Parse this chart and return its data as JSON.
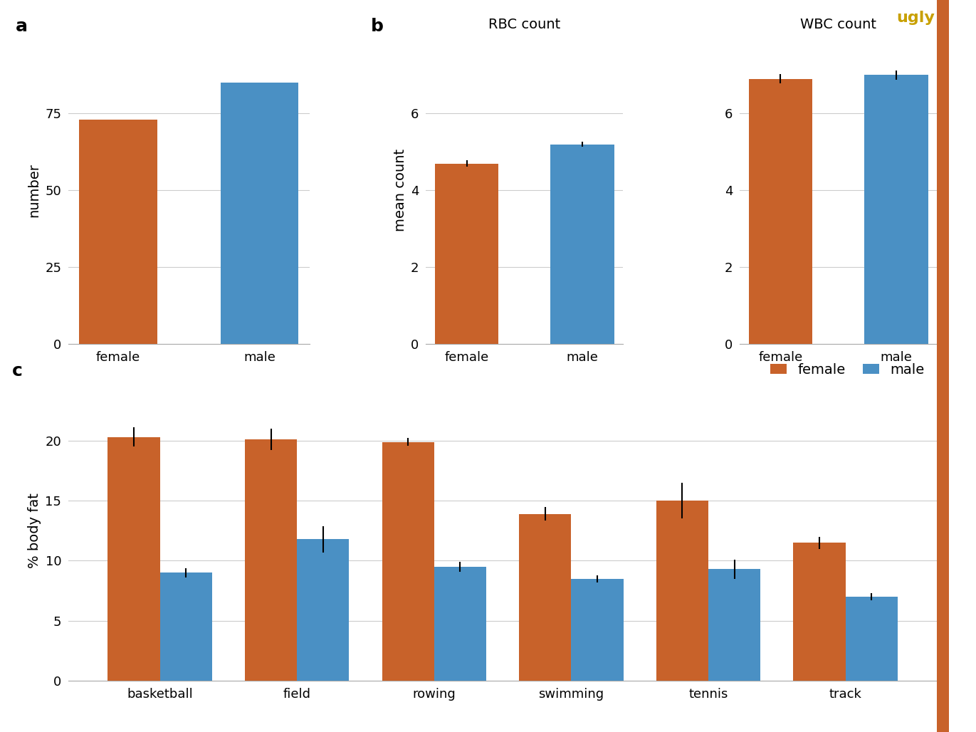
{
  "panel_a": {
    "categories": [
      "female",
      "male"
    ],
    "values": [
      73,
      85
    ],
    "colors": [
      "#C8622A",
      "#4A90C4"
    ],
    "ylabel": "number",
    "ylim": [
      0,
      100
    ],
    "yticks": [
      0,
      25,
      50,
      75
    ]
  },
  "panel_b_rbc": {
    "title": "RBC count",
    "categories": [
      "female",
      "male"
    ],
    "values": [
      4.7,
      5.2
    ],
    "errors": [
      0.08,
      0.07
    ],
    "colors": [
      "#C8622A",
      "#4A90C4"
    ],
    "ylabel": "mean count",
    "ylim": [
      0,
      8
    ],
    "yticks": [
      0,
      2,
      4,
      6
    ]
  },
  "panel_b_wbc": {
    "title": "WBC count",
    "categories": [
      "female",
      "male"
    ],
    "values": [
      6.9,
      7.0
    ],
    "errors": [
      0.12,
      0.12
    ],
    "colors": [
      "#C8622A",
      "#4A90C4"
    ],
    "ylim": [
      0,
      8
    ],
    "yticks": [
      0,
      2,
      4,
      6
    ]
  },
  "panel_c": {
    "sports": [
      "basketball",
      "field",
      "rowing",
      "swimming",
      "tennis",
      "track"
    ],
    "female_values": [
      20.3,
      20.1,
      19.9,
      13.9,
      15.0,
      11.5
    ],
    "female_errors": [
      0.8,
      0.9,
      0.35,
      0.55,
      1.5,
      0.5
    ],
    "male_values": [
      9.0,
      11.8,
      9.5,
      8.5,
      9.3,
      7.0
    ],
    "male_errors": [
      0.4,
      1.1,
      0.4,
      0.3,
      0.8,
      0.3
    ],
    "female_color": "#C8622A",
    "male_color": "#4A90C4",
    "ylabel": "% body fat",
    "ylim": [
      0,
      25
    ],
    "yticks": [
      0,
      5,
      10,
      15,
      20
    ]
  },
  "female_color": "#C8622A",
  "male_color": "#4A90C4",
  "ugly_color": "#C8A000",
  "bg_color": "#FFFFFF",
  "grid_color": "#CCCCCC",
  "label_fontsize": 14,
  "tick_fontsize": 13,
  "title_fontsize": 14,
  "side_bar_width": 0.012,
  "side_bar_color": "#C8622A"
}
